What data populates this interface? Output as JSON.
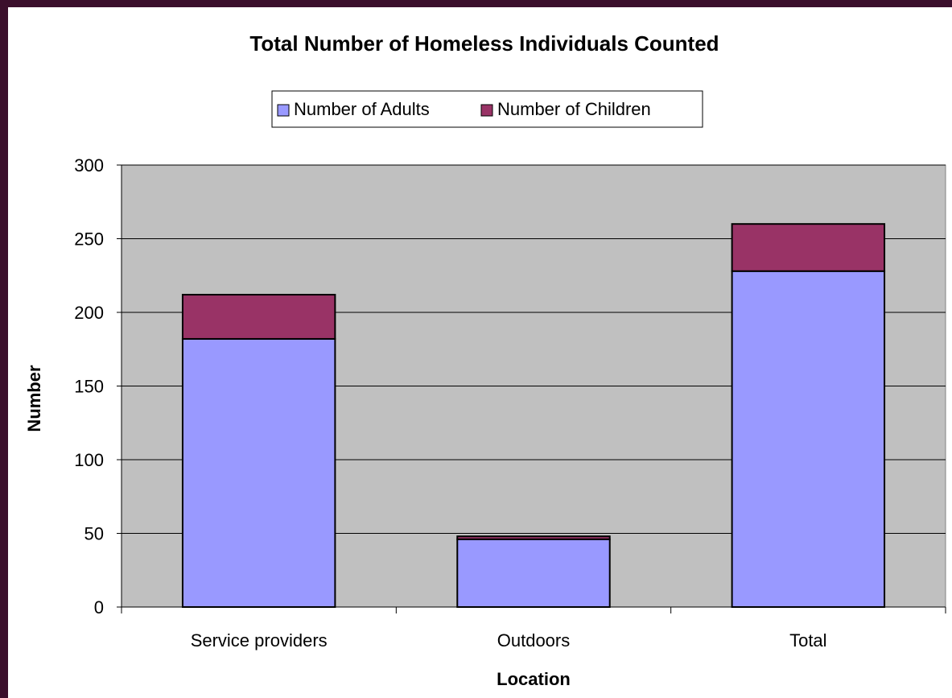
{
  "chart_data": {
    "type": "bar",
    "stacked": true,
    "title": "Total Number of Homeless Individuals Counted",
    "xlabel": "Location",
    "ylabel": "Number",
    "categories": [
      "Service providers",
      "Outdoors",
      "Total"
    ],
    "series": [
      {
        "name": "Number of Adults",
        "values": [
          182,
          46,
          228
        ],
        "color": "#9999ff"
      },
      {
        "name": "Number of Children",
        "values": [
          30,
          2,
          32
        ],
        "color": "#993366"
      }
    ],
    "ylim": [
      0,
      300
    ],
    "yticks": [
      0,
      50,
      100,
      150,
      200,
      250,
      300
    ],
    "grid": true,
    "legend_position": "top",
    "plot_background": "#c0c0c0",
    "frame_color": "#3b0f2c"
  }
}
